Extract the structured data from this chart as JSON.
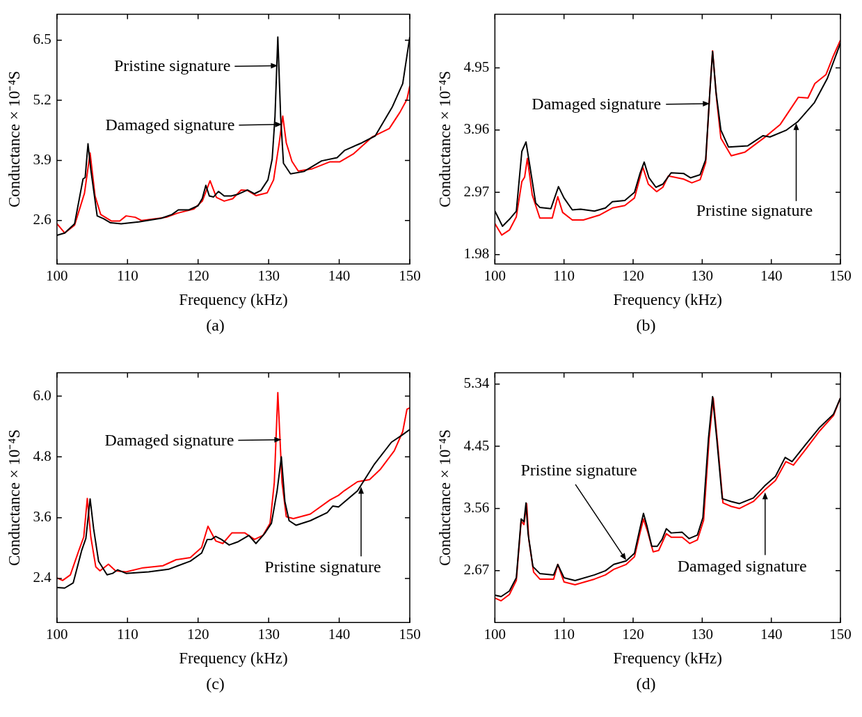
{
  "chart_data": [
    {
      "type": "line",
      "xlabel": "Frequency (kHz)",
      "ylabel": "Conductance × 10⁻⁴S",
      "xlim": [
        100,
        150
      ],
      "xticks": [
        100,
        110,
        120,
        130,
        140,
        150
      ],
      "ylim": [
        1.66,
        7.06
      ],
      "yticks": [
        2.6,
        3.9,
        5.2,
        6.5
      ],
      "series": [
        {
          "color": "#000000",
          "x": [
            100,
            101.1,
            102.5,
            103.7,
            104.0,
            104.4,
            104.8,
            105.7,
            106.6,
            107.6,
            109.1,
            111.6,
            114.8,
            116.3,
            117.2,
            118.7,
            120.0,
            120.6,
            121.1,
            121.6,
            122.2,
            122.9,
            123.7,
            124.7,
            125.7,
            127.0,
            128.0,
            128.9,
            129.9,
            130.5,
            130.9,
            131.3,
            131.7,
            132.1,
            133.1,
            135.0,
            137.5,
            139.7,
            140.8,
            143.2,
            145.1,
            147.5,
            149.0,
            150
          ],
          "values": [
            2.28,
            2.33,
            2.53,
            3.5,
            3.53,
            4.26,
            3.7,
            2.7,
            2.64,
            2.55,
            2.53,
            2.57,
            2.65,
            2.73,
            2.83,
            2.83,
            2.92,
            3.08,
            3.36,
            3.13,
            3.11,
            3.23,
            3.13,
            3.13,
            3.17,
            3.26,
            3.18,
            3.25,
            3.48,
            3.93,
            4.85,
            6.57,
            4.85,
            3.84,
            3.61,
            3.66,
            3.89,
            3.96,
            4.12,
            4.28,
            4.43,
            5.05,
            5.56,
            6.57
          ]
        },
        {
          "color": "#ff0000",
          "x": [
            100,
            101.1,
            102.5,
            103.9,
            104.7,
            105.4,
            106.2,
            107.7,
            108.9,
            109.8,
            111.1,
            112.0,
            115.5,
            117.1,
            119.4,
            120.6,
            121.7,
            122.6,
            123.7,
            124.9,
            126.1,
            127.0,
            128.2,
            129.8,
            130.7,
            131.5,
            132.0,
            132.5,
            133.3,
            134.2,
            136.2,
            138.7,
            140.1,
            142.0,
            144.7,
            147.1,
            148.6,
            149.6,
            150
          ],
          "values": [
            2.53,
            2.33,
            2.5,
            3.19,
            4.06,
            3.13,
            2.73,
            2.59,
            2.59,
            2.7,
            2.67,
            2.6,
            2.67,
            2.76,
            2.85,
            3.02,
            3.46,
            3.1,
            3.02,
            3.07,
            3.26,
            3.25,
            3.14,
            3.2,
            3.48,
            4.28,
            4.86,
            4.28,
            3.88,
            3.67,
            3.72,
            3.87,
            3.87,
            4.04,
            4.41,
            4.59,
            4.94,
            5.22,
            5.51
          ]
        }
      ],
      "annotations": [
        {
          "text": "Pristine signature",
          "x": 131.3,
          "y": 5.95
        },
        {
          "text": "Damaged signature",
          "x": 131.9,
          "y": 4.68
        },
        "(a)"
      ]
    },
    {
      "type": "line",
      "xlabel": "Frequency (kHz)",
      "ylabel": "Conductance × 10⁻⁴S",
      "xlim": [
        100,
        150
      ],
      "xticks": [
        100,
        110,
        120,
        130,
        140,
        150
      ],
      "ylim": [
        1.83,
        5.8
      ],
      "yticks": [
        1.98,
        2.97,
        3.96,
        4.95
      ],
      "series": [
        {
          "color": "#000000",
          "x": [
            100,
            101.1,
            102.1,
            103.1,
            103.9,
            104.5,
            105.1,
            105.9,
            106.5,
            108.1,
            109.2,
            110.0,
            111.2,
            112.4,
            114.4,
            116.0,
            117.0,
            118.8,
            120.2,
            121.0,
            121.6,
            122.3,
            123.3,
            124.3,
            125.5,
            127.3,
            128.3,
            129.7,
            130.5,
            131.1,
            131.5,
            132.0,
            132.7,
            133.8,
            136.6,
            138.8,
            139.8,
            142.2,
            143.8,
            146.2,
            148.1,
            150
          ],
          "values": [
            2.67,
            2.43,
            2.54,
            2.67,
            3.62,
            3.77,
            3.36,
            2.8,
            2.73,
            2.71,
            3.06,
            2.88,
            2.69,
            2.7,
            2.67,
            2.72,
            2.82,
            2.84,
            2.97,
            3.27,
            3.45,
            3.2,
            3.05,
            3.1,
            3.28,
            3.27,
            3.2,
            3.25,
            3.49,
            4.56,
            5.21,
            4.56,
            3.96,
            3.69,
            3.71,
            3.87,
            3.85,
            3.96,
            4.09,
            4.39,
            4.78,
            5.34
          ]
        },
        {
          "color": "#ff0000",
          "x": [
            100,
            101.0,
            102.1,
            103.1,
            103.9,
            104.3,
            104.7,
            105.4,
            106.5,
            108.3,
            109.1,
            109.8,
            111.2,
            112.8,
            115.2,
            117.0,
            118.8,
            120.2,
            121.4,
            122.2,
            123.4,
            124.3,
            125.1,
            127.3,
            128.5,
            129.7,
            130.5,
            131.1,
            131.5,
            132.1,
            132.7,
            134.2,
            136.2,
            139.0,
            141.3,
            143.9,
            145.3,
            146.3,
            147.9,
            148.9,
            150
          ],
          "values": [
            2.47,
            2.29,
            2.37,
            2.58,
            3.14,
            3.21,
            3.51,
            2.93,
            2.56,
            2.56,
            2.9,
            2.65,
            2.53,
            2.53,
            2.61,
            2.72,
            2.76,
            2.88,
            3.37,
            3.1,
            2.98,
            3.05,
            3.23,
            3.18,
            3.12,
            3.17,
            3.44,
            4.56,
            5.22,
            4.43,
            3.83,
            3.55,
            3.61,
            3.84,
            4.05,
            4.48,
            4.47,
            4.7,
            4.84,
            5.12,
            5.39
          ]
        }
      ],
      "annotations": [
        {
          "text": "Damaged signature",
          "x": 131.1,
          "y": 4.38
        },
        {
          "text": "Pristine signature",
          "x": 143.6,
          "y": 4.07
        },
        "(b)"
      ]
    },
    {
      "type": "line",
      "xlabel": "Frequency (kHz)",
      "ylabel": "Conductance × 10⁻⁴S",
      "xlim": [
        100,
        150
      ],
      "xticks": [
        100,
        110,
        120,
        130,
        140,
        150
      ],
      "ylim": [
        1.53,
        6.46
      ],
      "yticks": [
        2.4,
        3.6,
        4.8,
        {
          "value": 6,
          "label": "6.0"
        }
      ],
      "series": [
        {
          "color": "#000000",
          "x": [
            100,
            101.1,
            102.3,
            103.5,
            104.1,
            104.7,
            105.2,
            105.9,
            107.1,
            107.9,
            108.6,
            109.8,
            113.0,
            115.8,
            118.9,
            120.5,
            121.3,
            121.9,
            122.5,
            123.3,
            124.4,
            125.6,
            127.2,
            128.2,
            129.4,
            130.4,
            131.2,
            131.8,
            132.3,
            132.9,
            133.9,
            135.9,
            138.3,
            139.1,
            139.9,
            142.6,
            145.0,
            147.4,
            149.0,
            150
          ],
          "values": [
            2.22,
            2.21,
            2.31,
            2.95,
            3.19,
            3.97,
            3.38,
            2.74,
            2.47,
            2.5,
            2.57,
            2.5,
            2.53,
            2.58,
            2.74,
            2.9,
            3.17,
            3.17,
            3.23,
            3.17,
            3.06,
            3.12,
            3.25,
            3.09,
            3.28,
            3.49,
            4.13,
            4.8,
            3.92,
            3.54,
            3.45,
            3.54,
            3.7,
            3.83,
            3.81,
            4.13,
            4.66,
            5.09,
            5.24,
            5.34
          ]
        },
        {
          "color": "#ff0000",
          "x": [
            100,
            100.8,
            101.9,
            103.1,
            103.8,
            104.3,
            104.8,
            105.5,
            106.1,
            107.3,
            108.3,
            109.8,
            112.2,
            115.0,
            116.9,
            118.9,
            120.5,
            121.4,
            122.5,
            123.5,
            124.8,
            126.6,
            128.0,
            129.2,
            130.2,
            130.8,
            131.3,
            131.9,
            132.5,
            133.5,
            135.9,
            138.7,
            139.9,
            140.7,
            142.6,
            144.3,
            145.8,
            147.8,
            149.0,
            149.6,
            150
          ],
          "values": [
            2.41,
            2.36,
            2.47,
            2.95,
            3.22,
            3.98,
            3.22,
            2.63,
            2.55,
            2.68,
            2.55,
            2.53,
            2.61,
            2.65,
            2.77,
            2.81,
            3.01,
            3.43,
            3.14,
            3.09,
            3.3,
            3.3,
            3.17,
            3.25,
            3.49,
            4.29,
            6.07,
            4.29,
            3.62,
            3.58,
            3.67,
            3.95,
            4.04,
            4.13,
            4.31,
            4.35,
            4.55,
            4.92,
            5.3,
            5.74,
            5.77
          ]
        }
      ],
      "annotations": [
        {
          "text": "Damaged signature",
          "x": 131.8,
          "y": 5.14
        },
        {
          "text": "Pristine signature",
          "x": 143.1,
          "y": 4.21
        },
        "(c)"
      ]
    },
    {
      "type": "line",
      "xlabel": "Frequency (kHz)",
      "ylabel": "Conductance × 10⁻⁴S",
      "xlim": [
        100,
        150
      ],
      "xticks": [
        100,
        110,
        120,
        130,
        140,
        150
      ],
      "ylim": [
        1.93,
        5.5
      ],
      "yticks": [
        2.67,
        3.56,
        4.45,
        5.34
      ],
      "series": [
        {
          "color": "#000000",
          "x": [
            100,
            100.9,
            102.1,
            103.1,
            103.8,
            104.2,
            104.5,
            104.8,
            105.5,
            106.5,
            108.5,
            109.1,
            110.0,
            111.6,
            114.4,
            116.0,
            117.2,
            119.0,
            120.2,
            121.0,
            121.5,
            122.0,
            122.7,
            123.5,
            124.2,
            124.8,
            125.5,
            127.1,
            128.1,
            129.3,
            130.1,
            130.9,
            131.5,
            132.1,
            132.9,
            134.2,
            135.4,
            137.4,
            139.0,
            140.6,
            142.0,
            143.0,
            145.0,
            147.0,
            149.0,
            150
          ],
          "values": [
            2.32,
            2.3,
            2.38,
            2.57,
            3.41,
            3.37,
            3.64,
            3.2,
            2.73,
            2.63,
            2.61,
            2.76,
            2.57,
            2.53,
            2.61,
            2.67,
            2.76,
            2.81,
            2.92,
            3.28,
            3.49,
            3.31,
            3.02,
            3.02,
            3.12,
            3.27,
            3.21,
            3.22,
            3.13,
            3.18,
            3.43,
            4.56,
            5.16,
            4.56,
            3.7,
            3.66,
            3.63,
            3.71,
            3.88,
            4.02,
            4.29,
            4.23,
            4.48,
            4.72,
            4.91,
            5.14
          ]
        },
        {
          "color": "#ff0000",
          "x": [
            100,
            100.9,
            102.1,
            103.1,
            103.8,
            104.2,
            104.6,
            104.9,
            105.6,
            106.5,
            108.5,
            109.1,
            110.0,
            111.6,
            114.4,
            116.0,
            117.2,
            119.0,
            120.2,
            121.0,
            121.5,
            122.1,
            122.9,
            123.7,
            124.8,
            125.5,
            127.1,
            128.2,
            129.3,
            130.2,
            131.0,
            131.6,
            132.2,
            133.0,
            134.2,
            135.4,
            137.4,
            139.0,
            140.6,
            142.1,
            143.2,
            145.0,
            147.0,
            149.0,
            150
          ],
          "values": [
            2.28,
            2.24,
            2.33,
            2.53,
            3.38,
            3.33,
            3.63,
            3.12,
            2.65,
            2.55,
            2.55,
            2.76,
            2.51,
            2.47,
            2.55,
            2.61,
            2.69,
            2.76,
            2.87,
            3.21,
            3.41,
            3.23,
            2.94,
            2.96,
            3.2,
            3.15,
            3.15,
            3.06,
            3.11,
            3.39,
            4.56,
            5.14,
            4.52,
            3.64,
            3.59,
            3.56,
            3.66,
            3.82,
            3.96,
            4.23,
            4.18,
            4.41,
            4.67,
            4.89,
            5.14
          ]
        }
      ],
      "annotations": [
        {
          "text": "Pristine signature",
          "x": 119.0,
          "y": 2.82
        },
        {
          "text": "Damaged signature",
          "x": 139.1,
          "y": 3.79
        },
        "(d)"
      ]
    }
  ]
}
